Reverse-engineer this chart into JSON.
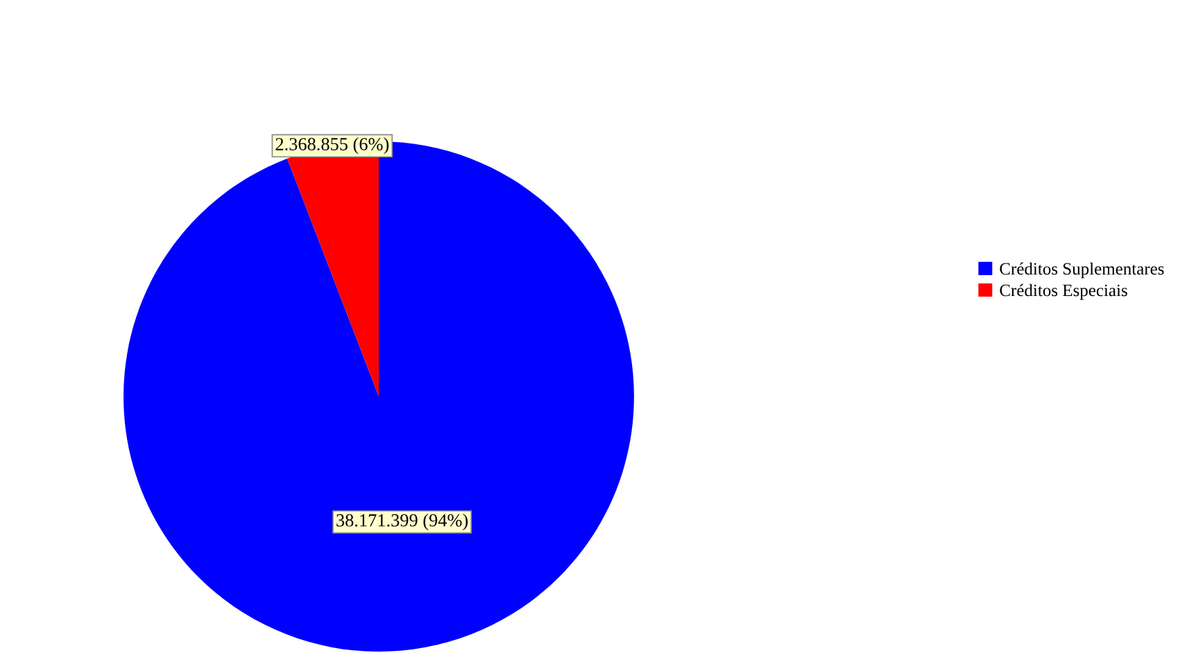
{
  "chart_data": {
    "type": "pie",
    "categories": [
      "Créditos Suplementares",
      "Créditos Especiais"
    ],
    "values": [
      38171399,
      2368855
    ],
    "colors": [
      "#0000ff",
      "#ff0000"
    ],
    "value_labels": [
      "38.171.399 (94%)",
      "2.368.855 (6%)"
    ],
    "legend": "right"
  }
}
